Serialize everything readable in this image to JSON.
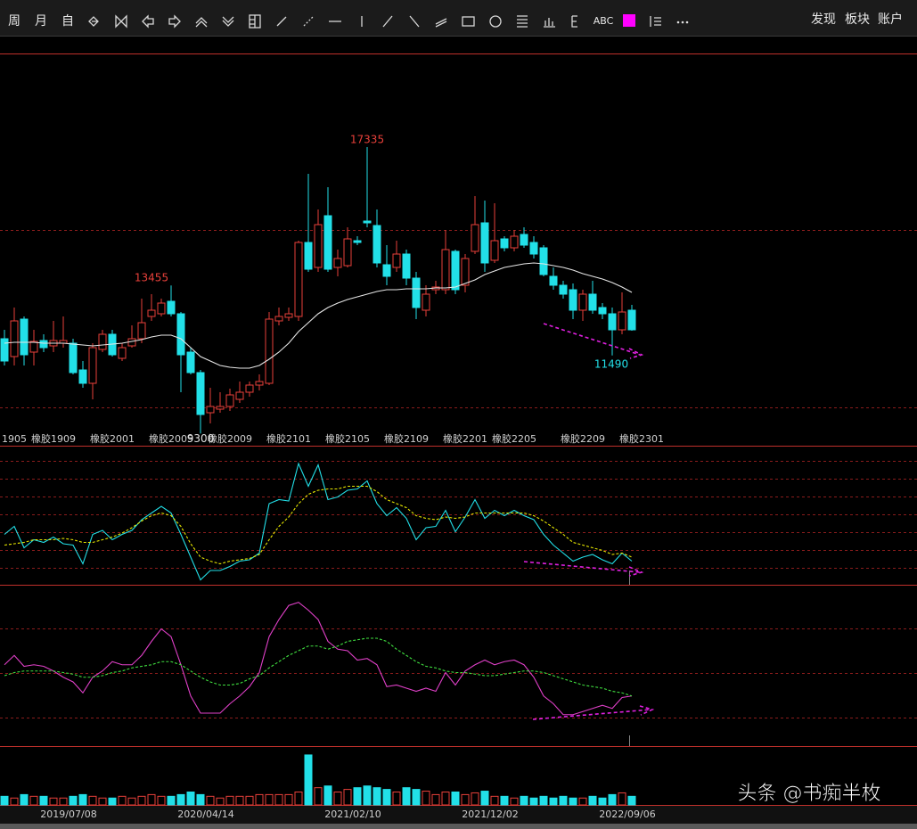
{
  "toolbar": {
    "left": [
      "周",
      "月",
      "自"
    ],
    "abc": "ABC",
    "right": [
      "发现",
      "板块",
      "账户"
    ]
  },
  "chart_data": {
    "type": "candlestick",
    "categories": [
      "1905",
      null,
      null,
      "橡胶1909",
      null,
      null,
      null,
      null,
      null,
      "橡胶2001",
      null,
      null,
      null,
      null,
      null,
      "橡胶2005",
      null,
      null,
      null,
      null,
      null,
      "橡胶2009",
      null,
      null,
      null,
      null,
      null,
      "橡胶2101",
      null,
      null,
      null,
      null,
      null,
      "橡胶2105",
      null,
      null,
      null,
      null,
      null,
      "橡胶2109",
      null,
      null,
      null,
      null,
      null,
      "橡胶2201",
      null,
      null,
      null,
      null,
      "橡胶2205",
      null,
      null,
      null,
      null,
      null,
      null,
      "橡胶2209",
      null,
      null,
      null,
      null,
      null,
      "橡胶2301",
      null
    ],
    "open": [
      11960,
      11460,
      12510,
      11585,
      11910,
      11760,
      11835,
      11835,
      11085,
      10710,
      11660,
      12085,
      11410,
      11760,
      11960,
      12585,
      12660,
      13010,
      12660,
      11585,
      11010,
      9885,
      9985,
      10060,
      10260,
      10460,
      10660,
      10710,
      12460,
      12560,
      12585,
      14660,
      13960,
      15410,
      13960,
      14010,
      14710,
      15260,
      15135,
      14035,
      13960,
      14335,
      13660,
      12760,
      13335,
      13335,
      14410,
      13460,
      14410,
      15210,
      14160,
      14760,
      14510,
      14885,
      14660,
      14510,
      13710,
      13460,
      13335,
      12760,
      13210,
      12835,
      12660,
      12210,
      12760
    ],
    "high": [
      12210,
      12835,
      12585,
      12210,
      12085,
      12460,
      12585,
      11960,
      11335,
      11835,
      12210,
      12210,
      11835,
      12335,
      13085,
      13210,
      13085,
      13455,
      12710,
      11710,
      11085,
      10585,
      10460,
      10560,
      10760,
      10760,
      10960,
      12710,
      12835,
      12835,
      14710,
      16585,
      15585,
      16210,
      14460,
      15085,
      14835,
      17335,
      15585,
      14585,
      14710,
      14460,
      13835,
      13460,
      13585,
      15010,
      14460,
      14335,
      15960,
      15835,
      15760,
      14835,
      15010,
      15085,
      14835,
      14585,
      13960,
      13585,
      13510,
      13335,
      13585,
      12960,
      12835,
      13260,
      12910
    ],
    "low": [
      11210,
      11210,
      11210,
      11210,
      11585,
      11585,
      11710,
      10960,
      10585,
      10260,
      11585,
      11460,
      11335,
      11710,
      11835,
      12460,
      12585,
      12585,
      10460,
      10960,
      9300,
      9585,
      9885,
      9935,
      10160,
      10335,
      10510,
      10660,
      12335,
      12460,
      12460,
      13835,
      13835,
      13835,
      13710,
      13960,
      14585,
      15085,
      13960,
      13460,
      13835,
      13460,
      12510,
      12585,
      13210,
      13210,
      13210,
      13260,
      14335,
      13835,
      14085,
      14410,
      14410,
      14510,
      14210,
      13710,
      13335,
      13085,
      12510,
      12460,
      12660,
      12510,
      11490,
      12085,
      12185
    ],
    "close": [
      11335,
      12460,
      11510,
      11885,
      11710,
      11910,
      11910,
      11010,
      10710,
      11710,
      12085,
      11510,
      11710,
      11960,
      12410,
      12760,
      12960,
      12660,
      11510,
      11010,
      9835,
      10060,
      10060,
      10385,
      10460,
      10660,
      10760,
      12510,
      12585,
      12660,
      14660,
      13910,
      15160,
      13910,
      14210,
      14760,
      14660,
      15210,
      14085,
      13710,
      14335,
      13660,
      12835,
      13210,
      13410,
      14460,
      13335,
      14210,
      15160,
      14085,
      14710,
      14510,
      14835,
      14585,
      14335,
      13760,
      13460,
      13210,
      12760,
      13210,
      12760,
      12660,
      12210,
      12710,
      12210
    ],
    "up_color": "#e8403a",
    "down_color": "#22e0e8",
    "ylim": [
      8960,
      19960
    ],
    "ma": {
      "color": "#e6e6e6",
      "values": [
        11835,
        11860,
        11860,
        11860,
        11835,
        11835,
        11835,
        11810,
        11785,
        11760,
        11785,
        11810,
        11835,
        11885,
        11935,
        12010,
        12060,
        12060,
        11960,
        11710,
        11460,
        11335,
        11210,
        11160,
        11135,
        11135,
        11210,
        11385,
        11585,
        11835,
        12160,
        12410,
        12660,
        12835,
        12960,
        13060,
        13135,
        13210,
        13285,
        13335,
        13335,
        13360,
        13360,
        13360,
        13385,
        13385,
        13410,
        13510,
        13610,
        13760,
        13860,
        13960,
        14010,
        14060,
        14085,
        14060,
        14010,
        13960,
        13885,
        13785,
        13710,
        13635,
        13535,
        13410,
        13260
      ]
    },
    "panels": [
      {
        "ylim": [
          0,
          100
        ],
        "series": [
          {
            "color": "#22e0e8",
            "dashed": false,
            "values": [
              37,
              43,
              27,
              33,
              31,
              35,
              30,
              29,
              15,
              37,
              40,
              33,
              37,
              40,
              48,
              53,
              58,
              53,
              37,
              20,
              3,
              10,
              10,
              13,
              17,
              18,
              23,
              60,
              63,
              62,
              90,
              73,
              89,
              63,
              65,
              70,
              71,
              77,
              60,
              51,
              57,
              49,
              33,
              42,
              43,
              55,
              39,
              50,
              63,
              49,
              55,
              51,
              55,
              51,
              48,
              37,
              29,
              23,
              17,
              20,
              22,
              18,
              15,
              23,
              17
            ]
          },
          {
            "color": "#e6e600",
            "dashed": true,
            "values": [
              29,
              30,
              31,
              33,
              33,
              33,
              34,
              33,
              31,
              31,
              33,
              35,
              38,
              42,
              47,
              51,
              53,
              51,
              43,
              30,
              20,
              17,
              15,
              17,
              18,
              19,
              22,
              33,
              43,
              50,
              60,
              67,
              70,
              71,
              71,
              73,
              73,
              73,
              69,
              63,
              60,
              57,
              51,
              49,
              48,
              50,
              49,
              50,
              53,
              53,
              53,
              53,
              53,
              53,
              51,
              47,
              42,
              37,
              31,
              29,
              27,
              25,
              22,
              23,
              20
            ]
          }
        ]
      },
      {
        "ylim": [
          0,
          100
        ],
        "series": [
          {
            "color": "#e040c8",
            "dashed": false,
            "values": [
              51,
              57,
              50,
              51,
              50,
              47,
              43,
              40,
              33,
              43,
              47,
              53,
              51,
              51,
              57,
              66,
              74,
              69,
              51,
              31,
              20,
              20,
              20,
              26,
              31,
              37,
              46,
              69,
              80,
              89,
              91,
              86,
              80,
              66,
              61,
              60,
              54,
              55,
              51,
              37,
              38,
              36,
              34,
              36,
              34,
              46,
              38,
              47,
              51,
              54,
              51,
              53,
              54,
              51,
              43,
              31,
              26,
              19,
              19,
              21,
              23,
              25,
              23,
              30,
              31
            ]
          },
          {
            "color": "#40e040",
            "dashed": true,
            "values": [
              44,
              46,
              47,
              47,
              47,
              47,
              46,
              45,
              43,
              43,
              44,
              46,
              47,
              49,
              50,
              51,
              53,
              53,
              51,
              47,
              43,
              40,
              38,
              38,
              39,
              42,
              44,
              49,
              53,
              57,
              60,
              63,
              63,
              61,
              63,
              66,
              67,
              68,
              68,
              66,
              61,
              57,
              53,
              50,
              49,
              47,
              46,
              46,
              45,
              44,
              44,
              45,
              46,
              47,
              47,
              46,
              44,
              42,
              40,
              38,
              37,
              36,
              34,
              33,
              31
            ]
          }
        ]
      }
    ],
    "volume": {
      "ylim": [
        0,
        60
      ],
      "values": [
        10,
        8,
        12,
        10,
        10,
        8,
        8,
        10,
        12,
        10,
        8,
        8,
        10,
        8,
        10,
        12,
        10,
        10,
        12,
        15,
        12,
        10,
        8,
        10,
        10,
        10,
        12,
        12,
        12,
        12,
        15,
        58,
        20,
        22,
        15,
        18,
        20,
        22,
        20,
        18,
        15,
        20,
        18,
        16,
        12,
        15,
        15,
        12,
        14,
        16,
        10,
        10,
        8,
        10,
        8,
        10,
        8,
        10,
        8,
        8,
        10,
        8,
        12,
        14,
        10
      ]
    },
    "date_labels": [
      "2019/07/08",
      "2020/04/14",
      "2021/02/10",
      "2021/12/02",
      "2022/09/06"
    ]
  },
  "watermark": "头条 @书痴半枚"
}
